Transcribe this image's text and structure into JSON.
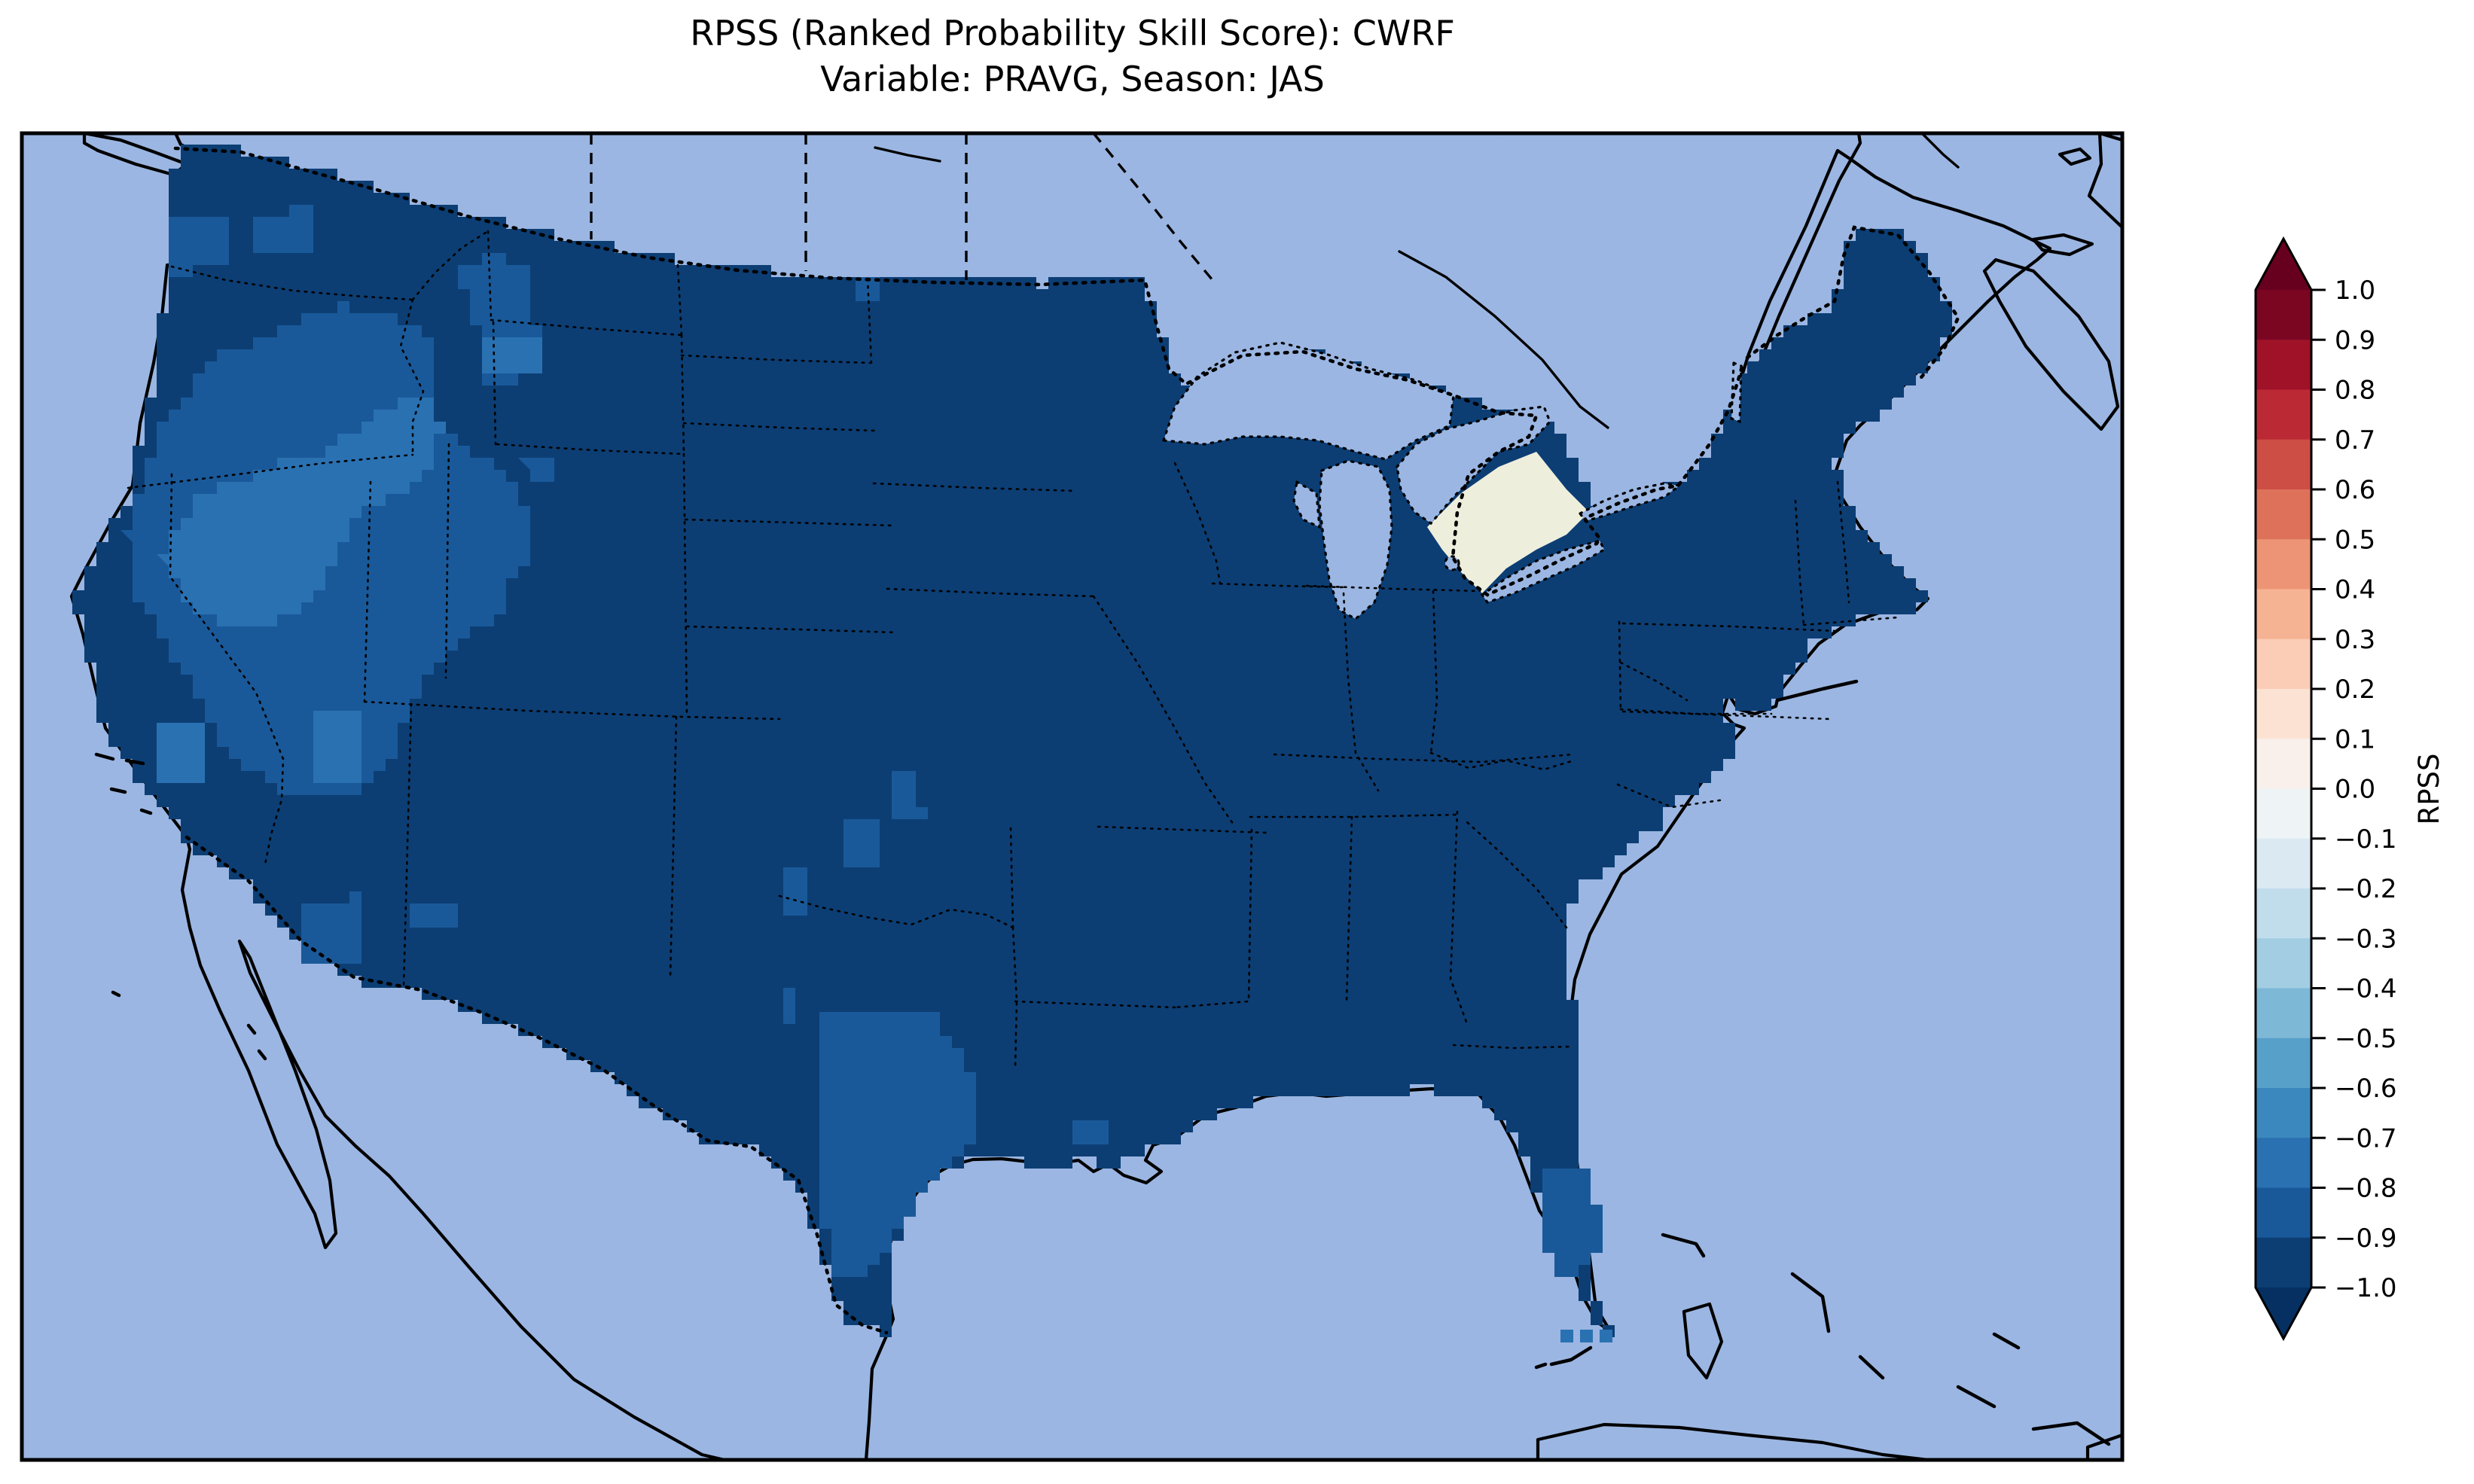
{
  "title": {
    "line1": "RPSS (Ranked Probability Skill Score): CWRF",
    "line2": "Variable: PRAVG, Season: JAS"
  },
  "colorbar": {
    "label": "RPSS",
    "min": -1.0,
    "max": 1.0,
    "step": 0.1,
    "ticks": [
      "1.0",
      "0.9",
      "0.8",
      "0.7",
      "0.6",
      "0.5",
      "0.4",
      "0.3",
      "0.2",
      "0.1",
      "0.0",
      "−0.1",
      "−0.2",
      "−0.3",
      "−0.4",
      "−0.5",
      "−0.6",
      "−0.7",
      "−0.8",
      "−0.9",
      "−1.0"
    ],
    "over_color": "#67001f",
    "under_color": "#053061",
    "segment_colors_low_to_high": [
      "#0c3e74",
      "#1a5999",
      "#2a71b2",
      "#3a88bd",
      "#57a0ca",
      "#7eb8d7",
      "#a2cde3",
      "#c1ddec",
      "#dbeaf2",
      "#eef3f5",
      "#f9f0eb",
      "#fce2d3",
      "#fbcdb6",
      "#f6b393",
      "#ec9475",
      "#de715a",
      "#cd4e45",
      "#bb2a34",
      "#9f1228",
      "#7a0622"
    ]
  },
  "map": {
    "colors": {
      "ocean": "#9bb6e2",
      "land": "#eeeedd",
      "us_fill_dark": "#0c3e74",
      "us_fill_medium": "#1a5999",
      "us_fill_light": "#2a71b2",
      "lines": "#000000",
      "background": "#ffffff"
    }
  },
  "chart_data": {
    "type": "choropleth_map",
    "metric": "RPSS",
    "model": "CWRF",
    "variable": "PRAVG",
    "season": "JAS",
    "colorbar_range": [
      -1.0,
      1.0
    ],
    "colorbar_step": 0.1,
    "dominant_value_bin": "−1.0 to −0.9",
    "secondary_bins": {
      "−0.9 to −0.8": [
        "Intermountain West (OR/ID/NV/UT/MT/AZ)",
        "Oklahoma & north Texas",
        "southeast Texas coast",
        "south Florida",
        "scattered plains cells"
      ],
      "−0.8 to −0.7": [
        "core of Great Basin (NW Nevada / SE Oregon / S Idaho)",
        "small cells near Florida Keys"
      ]
    },
    "legend_position": "right",
    "notes": "Entire contiguous US shaded deep blue (strongly negative RPSS); Canada and Mexico unshaded land; Great Lakes and oceans in light blue."
  }
}
